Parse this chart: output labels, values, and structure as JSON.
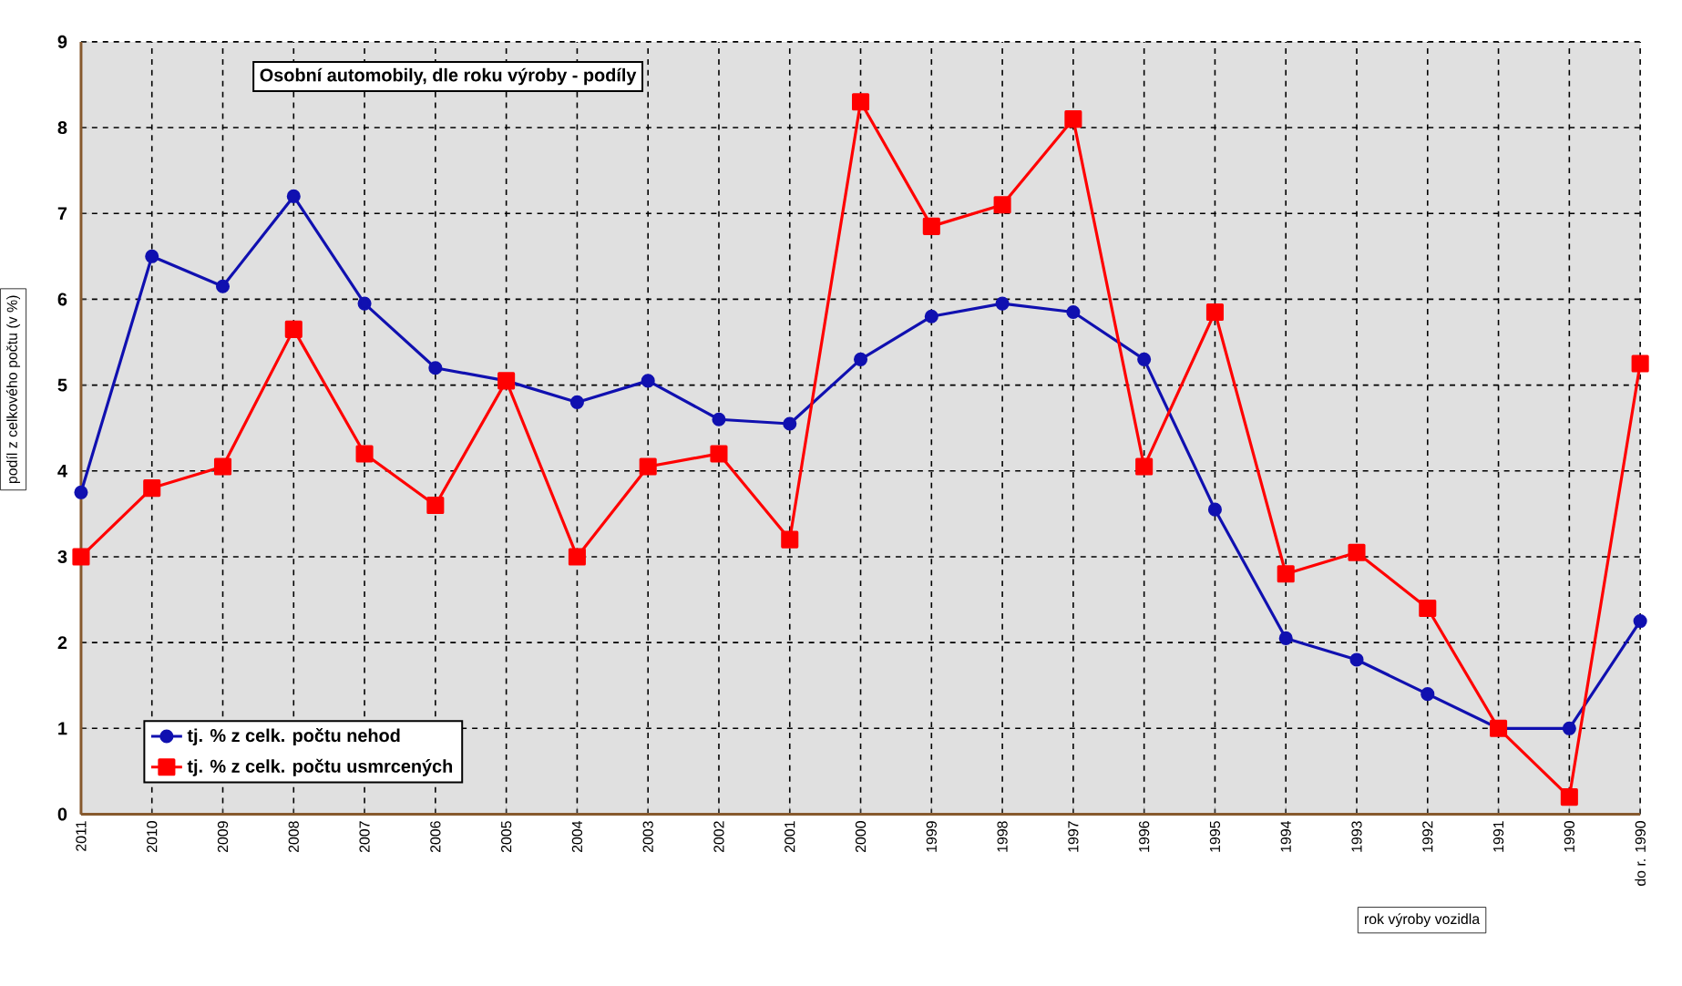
{
  "chart_data": {
    "type": "line",
    "title": "Osobní automobily, dle roku výroby - podíly",
    "xlabel": "rok výroby vozidla",
    "ylabel": "podíl z celkového počtu (v %)",
    "categories": [
      "2011",
      "2010",
      "2009",
      "2008",
      "2007",
      "2006",
      "2005",
      "2004",
      "2003",
      "2002",
      "2001",
      "2000",
      "1999",
      "1998",
      "1997",
      "1996",
      "1995",
      "1994",
      "1993",
      "1992",
      "1991",
      "1990",
      "do r. 1990"
    ],
    "series": [
      {
        "name": "tj. % z celk. počtu nehod",
        "color": "#1010b0",
        "marker": "circle",
        "values": [
          3.75,
          6.5,
          6.15,
          7.2,
          5.95,
          5.2,
          5.05,
          4.8,
          5.05,
          4.6,
          4.55,
          5.3,
          5.8,
          5.95,
          5.85,
          5.3,
          3.55,
          2.05,
          1.8,
          1.4,
          1.0,
          1.0,
          2.25
        ]
      },
      {
        "name": "tj. % z celk. počtu usmrcených",
        "color": "#ff0000",
        "marker": "square",
        "values": [
          3.0,
          3.8,
          4.05,
          5.65,
          4.2,
          3.6,
          5.05,
          3.0,
          4.05,
          4.2,
          3.2,
          8.3,
          6.85,
          7.1,
          8.1,
          4.05,
          5.85,
          2.8,
          3.05,
          2.4,
          1.0,
          0.2,
          5.25
        ]
      }
    ],
    "ylim": [
      0,
      9
    ],
    "yticks": [
      0,
      1,
      2,
      3,
      4,
      5,
      6,
      7,
      8,
      9
    ],
    "grid": true,
    "legend": "bottom left"
  }
}
